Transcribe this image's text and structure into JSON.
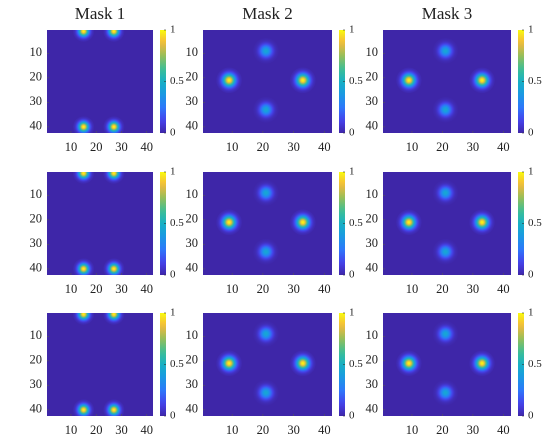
{
  "chart_data": [
    {
      "type": "heatmap",
      "title": "Mask 1",
      "colormap": "parula",
      "xlim": [
        0.5,
        42.5
      ],
      "ylim": [
        0.5,
        42.5
      ],
      "y_reversed": true,
      "xticks": [
        10,
        20,
        30,
        40
      ],
      "yticks": [
        10,
        20,
        30,
        40
      ],
      "clim": [
        0,
        1
      ],
      "cticks": [
        0,
        0.5,
        1
      ],
      "spots": [
        {
          "x": 15,
          "y": 1,
          "value": 1
        },
        {
          "x": 27,
          "y": 1,
          "value": 1
        },
        {
          "x": 15,
          "y": 40,
          "value": 1
        },
        {
          "x": 27,
          "y": 40,
          "value": 1
        }
      ]
    },
    {
      "type": "heatmap",
      "title": "Mask 2",
      "colormap": "parula",
      "xlim": [
        0.5,
        42.5
      ],
      "ylim": [
        0.5,
        42.5
      ],
      "y_reversed": true,
      "xticks": [
        10,
        20,
        30,
        40
      ],
      "yticks": [
        10,
        20,
        30,
        40
      ],
      "clim": [
        0,
        1
      ],
      "cticks": [
        0,
        0.5,
        1
      ],
      "spots": [
        {
          "x": 21,
          "y": 9,
          "value": 0.45
        },
        {
          "x": 9,
          "y": 21,
          "value": 1
        },
        {
          "x": 33,
          "y": 21,
          "value": 1
        },
        {
          "x": 21,
          "y": 33,
          "value": 0.45
        }
      ]
    },
    {
      "type": "heatmap",
      "title": "Mask 3",
      "colormap": "parula",
      "xlim": [
        0.5,
        42.5
      ],
      "ylim": [
        0.5,
        42.5
      ],
      "y_reversed": true,
      "xticks": [
        10,
        20,
        30,
        40
      ],
      "yticks": [
        10,
        20,
        30,
        40
      ],
      "clim": [
        0,
        1
      ],
      "cticks": [
        0,
        0.5,
        1
      ],
      "spots": [
        {
          "x": 21,
          "y": 9,
          "value": 0.45
        },
        {
          "x": 9,
          "y": 21,
          "value": 1
        },
        {
          "x": 33,
          "y": 21,
          "value": 1
        },
        {
          "x": 21,
          "y": 33,
          "value": 0.45
        }
      ]
    },
    {
      "type": "heatmap",
      "colormap": "parula",
      "xlim": [
        0.5,
        42.5
      ],
      "ylim": [
        0.5,
        42.5
      ],
      "y_reversed": true,
      "xticks": [
        10,
        20,
        30,
        40
      ],
      "yticks": [
        10,
        20,
        30,
        40
      ],
      "clim": [
        0,
        1
      ],
      "cticks": [
        0,
        0.5,
        1
      ],
      "spots": [
        {
          "x": 15,
          "y": 1,
          "value": 1
        },
        {
          "x": 27,
          "y": 1,
          "value": 1
        },
        {
          "x": 15,
          "y": 40,
          "value": 1
        },
        {
          "x": 27,
          "y": 40,
          "value": 1
        }
      ]
    },
    {
      "type": "heatmap",
      "colormap": "parula",
      "xlim": [
        0.5,
        42.5
      ],
      "ylim": [
        0.5,
        42.5
      ],
      "y_reversed": true,
      "xticks": [
        10,
        20,
        30,
        40
      ],
      "yticks": [
        10,
        20,
        30,
        40
      ],
      "clim": [
        0,
        1
      ],
      "cticks": [
        0,
        0.5,
        1
      ],
      "spots": [
        {
          "x": 21,
          "y": 9,
          "value": 0.45
        },
        {
          "x": 9,
          "y": 21,
          "value": 1
        },
        {
          "x": 33,
          "y": 21,
          "value": 1
        },
        {
          "x": 21,
          "y": 33,
          "value": 0.45
        }
      ]
    },
    {
      "type": "heatmap",
      "colormap": "parula",
      "xlim": [
        0.5,
        42.5
      ],
      "ylim": [
        0.5,
        42.5
      ],
      "y_reversed": true,
      "xticks": [
        10,
        20,
        30,
        40
      ],
      "yticks": [
        10,
        20,
        30,
        40
      ],
      "clim": [
        0,
        1
      ],
      "cticks": [
        0,
        0.5,
        1
      ],
      "spots": [
        {
          "x": 21,
          "y": 9,
          "value": 0.45
        },
        {
          "x": 9,
          "y": 21,
          "value": 1
        },
        {
          "x": 33,
          "y": 21,
          "value": 1
        },
        {
          "x": 21,
          "y": 33,
          "value": 0.45
        }
      ]
    },
    {
      "type": "heatmap",
      "colormap": "parula",
      "xlim": [
        0.5,
        42.5
      ],
      "ylim": [
        0.5,
        42.5
      ],
      "y_reversed": true,
      "xticks": [
        10,
        20,
        30,
        40
      ],
      "yticks": [
        10,
        20,
        30,
        40
      ],
      "clim": [
        0,
        1
      ],
      "cticks": [
        0,
        0.5,
        1
      ],
      "spots": [
        {
          "x": 15,
          "y": 1,
          "value": 1
        },
        {
          "x": 27,
          "y": 1,
          "value": 1
        },
        {
          "x": 15,
          "y": 40,
          "value": 1
        },
        {
          "x": 27,
          "y": 40,
          "value": 1
        }
      ]
    },
    {
      "type": "heatmap",
      "colormap": "parula",
      "xlim": [
        0.5,
        42.5
      ],
      "ylim": [
        0.5,
        42.5
      ],
      "y_reversed": true,
      "xticks": [
        10,
        20,
        30,
        40
      ],
      "yticks": [
        10,
        20,
        30,
        40
      ],
      "clim": [
        0,
        1
      ],
      "cticks": [
        0,
        0.5,
        1
      ],
      "spots": [
        {
          "x": 21,
          "y": 9,
          "value": 0.45
        },
        {
          "x": 9,
          "y": 21,
          "value": 1
        },
        {
          "x": 33,
          "y": 21,
          "value": 1
        },
        {
          "x": 21,
          "y": 33,
          "value": 0.45
        }
      ]
    },
    {
      "type": "heatmap",
      "colormap": "parula",
      "xlim": [
        0.5,
        42.5
      ],
      "ylim": [
        0.5,
        42.5
      ],
      "y_reversed": true,
      "xticks": [
        10,
        20,
        30,
        40
      ],
      "yticks": [
        10,
        20,
        30,
        40
      ],
      "clim": [
        0,
        1
      ],
      "cticks": [
        0,
        0.5,
        1
      ],
      "spots": [
        {
          "x": 21,
          "y": 9,
          "value": 0.45
        },
        {
          "x": 9,
          "y": 21,
          "value": 1
        },
        {
          "x": 33,
          "y": 21,
          "value": 1
        },
        {
          "x": 21,
          "y": 33,
          "value": 0.45
        }
      ]
    }
  ]
}
